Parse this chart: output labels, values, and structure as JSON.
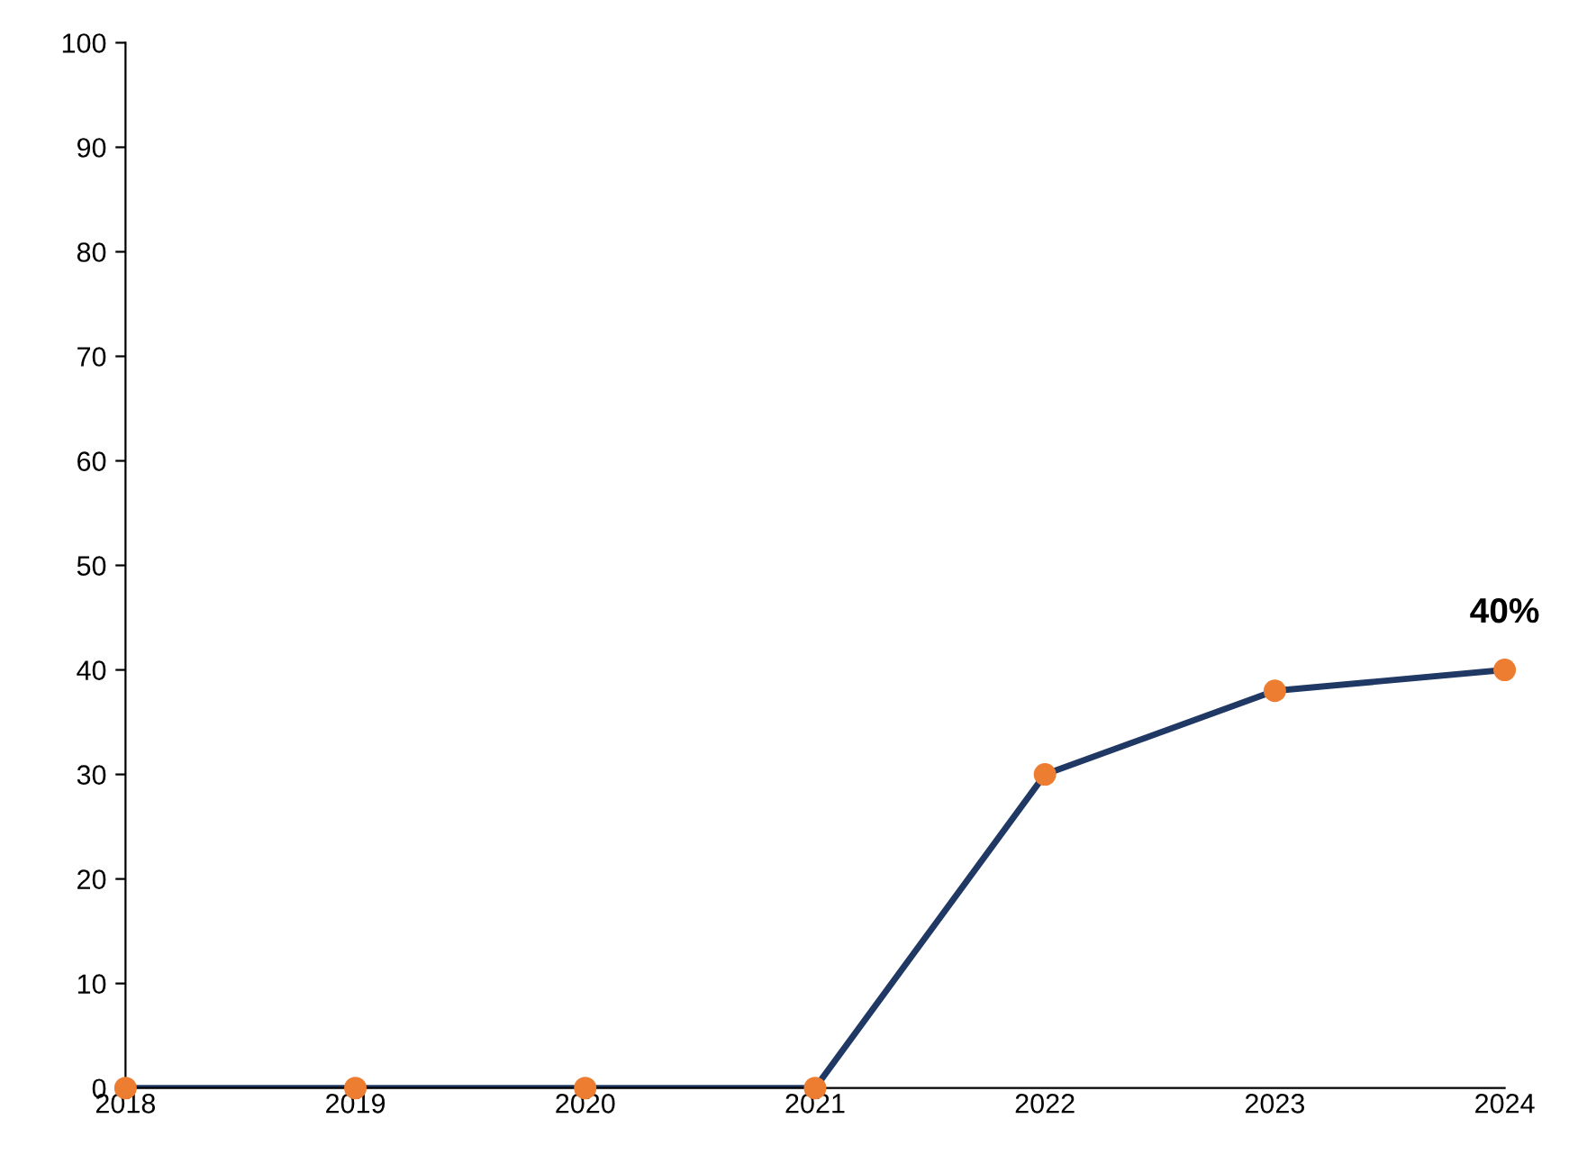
{
  "chart_data": {
    "type": "line",
    "categories": [
      "2018",
      "2019",
      "2020",
      "2021",
      "2022",
      "2023",
      "2024"
    ],
    "series": [
      {
        "color": "#1f3864",
        "colors": [
          "#ed7d31",
          "#ed7d31",
          "#ed7d31",
          "#ed7d31",
          "#ed7d31",
          "#ed7d31",
          "#ed7d31"
        ],
        "values": [
          0,
          0,
          0,
          0,
          30,
          38,
          40
        ],
        "value_labels": [
          null,
          null,
          null,
          null,
          null,
          null,
          "40%"
        ]
      }
    ],
    "ylim": [
      0,
      100
    ],
    "yticks": [
      0,
      10,
      20,
      30,
      40,
      50,
      60,
      70,
      80,
      90,
      100
    ],
    "grid": false,
    "legend": false,
    "marker": "circle",
    "line_style": "solid"
  }
}
